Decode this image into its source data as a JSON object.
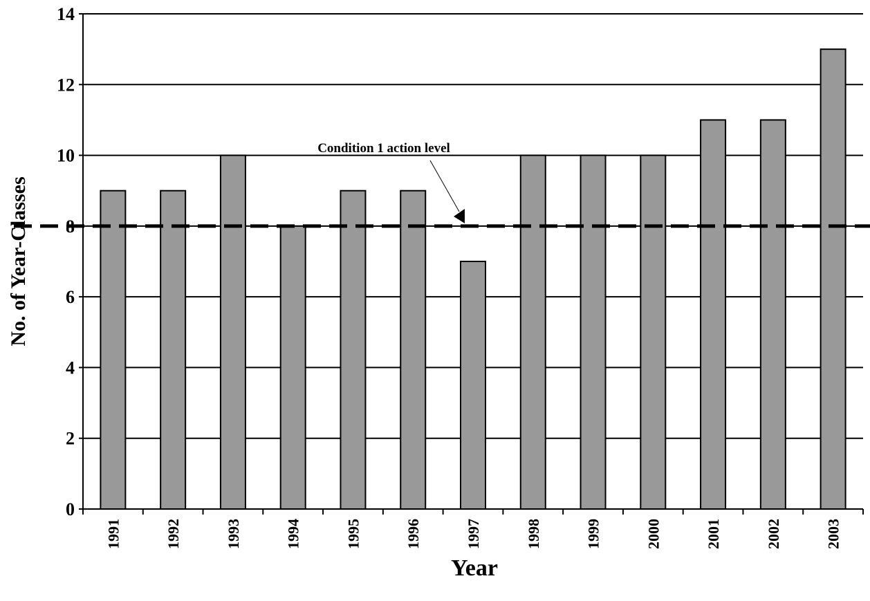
{
  "chart_data": {
    "type": "bar",
    "x_label": "Year",
    "y_label": "No. of Year-Classes",
    "categories": [
      "1991",
      "1992",
      "1993",
      "1994",
      "1995",
      "1996",
      "1997",
      "1998",
      "1999",
      "2000",
      "2001",
      "2002",
      "2003"
    ],
    "values": [
      9,
      9,
      10,
      8,
      9,
      9,
      7,
      10,
      10,
      10,
      11,
      11,
      13
    ],
    "color": "#999999",
    "ylim": [
      0,
      14
    ],
    "yticks": [
      0,
      2,
      4,
      6,
      8,
      10,
      12,
      14
    ],
    "grid": true,
    "reference_line": {
      "value": 8,
      "label": "Condition 1 action level"
    }
  }
}
